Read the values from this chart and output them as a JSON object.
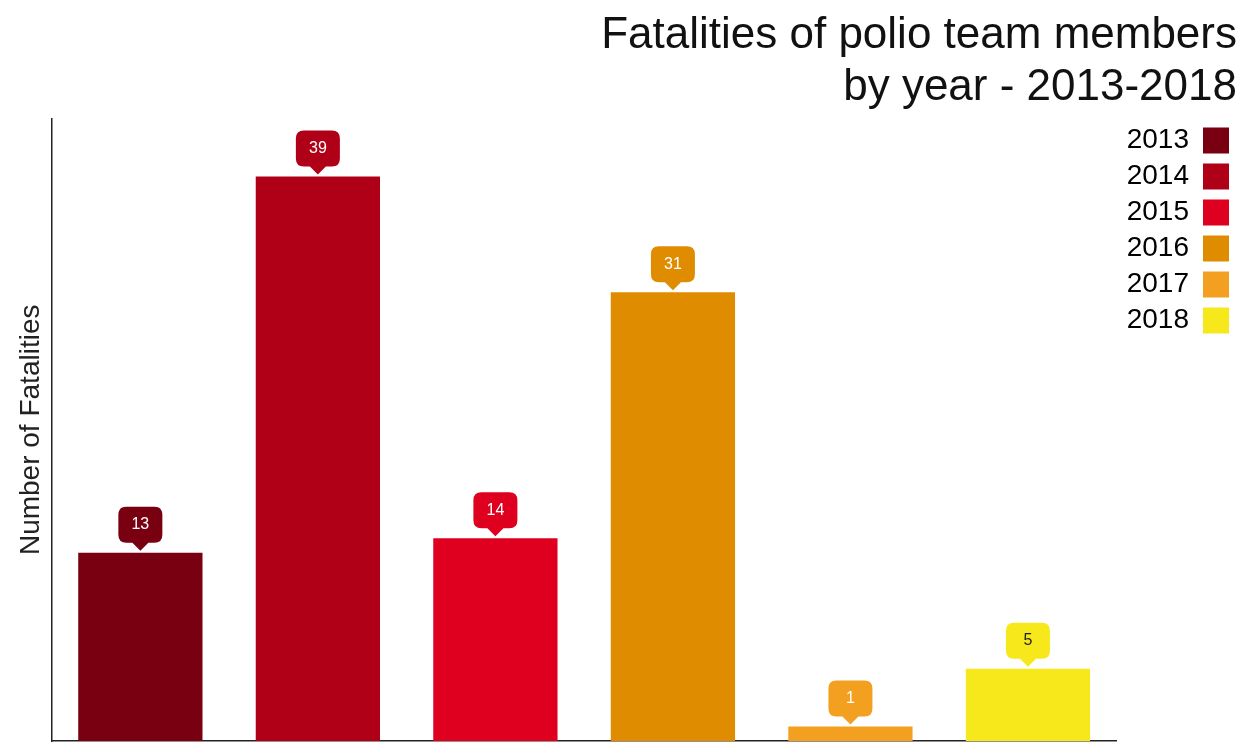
{
  "chart_data": {
    "type": "bar",
    "title": [
      "Fatalities of polio team members",
      "by year - 2013-2018"
    ],
    "ylabel": "Number of Fatalities",
    "categories": [
      null,
      null,
      null,
      null,
      null,
      null
    ],
    "series": [
      {
        "name": "2013",
        "color": "#780010",
        "values": [
          13,
          null,
          null,
          null,
          null,
          null
        ]
      },
      {
        "name": "2014",
        "color": "#b00018",
        "values": [
          null,
          39,
          null,
          null,
          null,
          null
        ]
      },
      {
        "name": "2015",
        "color": "#de001e",
        "values": [
          null,
          null,
          14,
          null,
          null,
          null
        ]
      },
      {
        "name": "2016",
        "color": "#e08c00",
        "values": [
          null,
          null,
          null,
          31,
          null,
          null
        ]
      },
      {
        "name": "2017",
        "color": "#f3a020",
        "values": [
          null,
          null,
          null,
          null,
          1,
          null
        ]
      },
      {
        "name": "2018",
        "color": "#f7e81c",
        "values": [
          null,
          null,
          null,
          null,
          null,
          5
        ]
      }
    ],
    "stacked": true,
    "ylim": [
      0,
      43
    ],
    "tick_labels": false,
    "grid": false,
    "legend": "right",
    "data_labels": true
  }
}
